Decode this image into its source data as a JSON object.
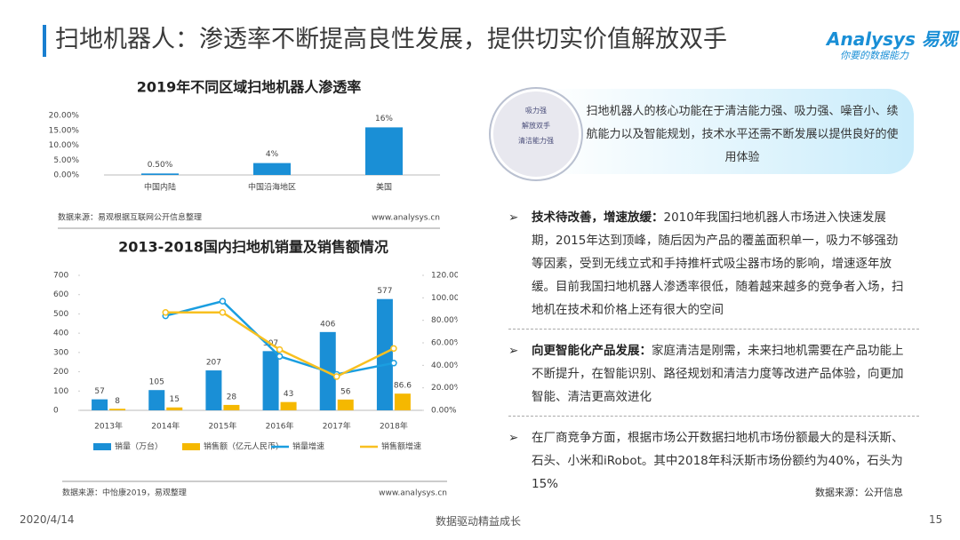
{
  "header": {
    "title": "扫地机器人：渗透率不断提高良性发展，提供切实价值解放双手",
    "logo": "Analysys 易观",
    "tagline": "你要的数据能力"
  },
  "chart_data": [
    {
      "type": "bar",
      "title": "2019年不同区域扫地机器人渗透率",
      "categories": [
        "中国内陆",
        "中国沿海地区",
        "美国"
      ],
      "values": [
        0.5,
        4,
        16
      ],
      "value_labels": [
        "0.50%",
        "4%",
        "16%"
      ],
      "color": "#1a8fd6",
      "ylim": [
        0,
        20
      ],
      "yticks": [
        {
          "value": 0,
          "label": "0.00%"
        },
        {
          "value": 5,
          "label": "5.00%"
        },
        {
          "value": 10,
          "label": "10.00%"
        },
        {
          "value": 15,
          "label": "15.00%"
        },
        {
          "value": 20,
          "label": "20.00%"
        }
      ],
      "source": "数据来源：易观根据互联网公开信息整理",
      "site": "www.analysys.cn"
    },
    {
      "type": "combo",
      "title": "2013-2018国内扫地机销量及销售额情况",
      "categories": [
        "2013年",
        "2014年",
        "2015年",
        "2016年",
        "2017年",
        "2018年"
      ],
      "series": [
        {
          "name": "销量（万台）",
          "color": "#1a8fd6",
          "values": [
            57,
            105,
            207,
            307,
            406,
            577
          ]
        },
        {
          "name": "销售额（亿元人民币）",
          "color": "#f5b800",
          "values": [
            8,
            15,
            28,
            43,
            56,
            86.6
          ]
        },
        {
          "name": "销量增速",
          "color": "#1a9ee0",
          "axis": "y2",
          "values": [
            null,
            84,
            97,
            48,
            32,
            42
          ]
        },
        {
          "name": "销售额增速",
          "color": "#f8c020",
          "axis": "y2",
          "values": [
            null,
            87,
            87,
            54,
            30,
            55
          ]
        }
      ],
      "ylim": [
        0,
        700
      ],
      "yticks": [
        0,
        100,
        200,
        300,
        400,
        500,
        600,
        700
      ],
      "y2lim": [
        0,
        120
      ],
      "y2ticks": [
        {
          "value": 0,
          "label": "0.00%"
        },
        {
          "value": 20,
          "label": "20.00%"
        },
        {
          "value": 40,
          "label": "40.00%"
        },
        {
          "value": 60,
          "label": "60.00%"
        },
        {
          "value": 80,
          "label": "80.00%"
        },
        {
          "value": 100,
          "label": "100.00%"
        },
        {
          "value": 120,
          "label": "120.00%"
        }
      ],
      "source": "数据来源：中怡康2019，易观整理",
      "site": "www.analysys.cn"
    }
  ],
  "callout": {
    "icon_words": [
      "吸力强",
      "解放双手",
      "清洁能力强"
    ],
    "text": "扫地机器人的核心功能在于清洁能力强、吸力强、噪音小、续航能力以及智能规划，技术水平还需不断发展以提供良好的使用体验"
  },
  "bullets": [
    {
      "lead": "技术待改善，增速放缓：",
      "text": "2010年我国扫地机器人市场进入快速发展期，2015年达到顶峰，随后因为产品的覆盖面积单一，吸力不够强劲等因素，受到无线立式和手持推杆式吸尘器市场的影响，增速逐年放缓。目前我国扫地机器人渗透率很低，随着越来越多的竞争者入场，扫地机在技术和价格上还有很大的空间"
    },
    {
      "lead": "向更智能化产品发展：",
      "text": "家庭清洁是刚需，未来扫地机需要在产品功能上不断提升，在智能识别、路径规划和清洁力度等改进产品体验，向更加智能、清洁更高效进化"
    },
    {
      "text": "在厂商竞争方面，根据市场公开数据扫地机市场份额最大的是科沃斯、石头、小米和iRobot。其中2018年科沃斯市场份额约为40%，石头为15%"
    }
  ],
  "right_source": "数据来源：公开信息",
  "footer": {
    "date": "2020/4/14",
    "slogan": "数据驱动精益成长",
    "page": "15"
  }
}
